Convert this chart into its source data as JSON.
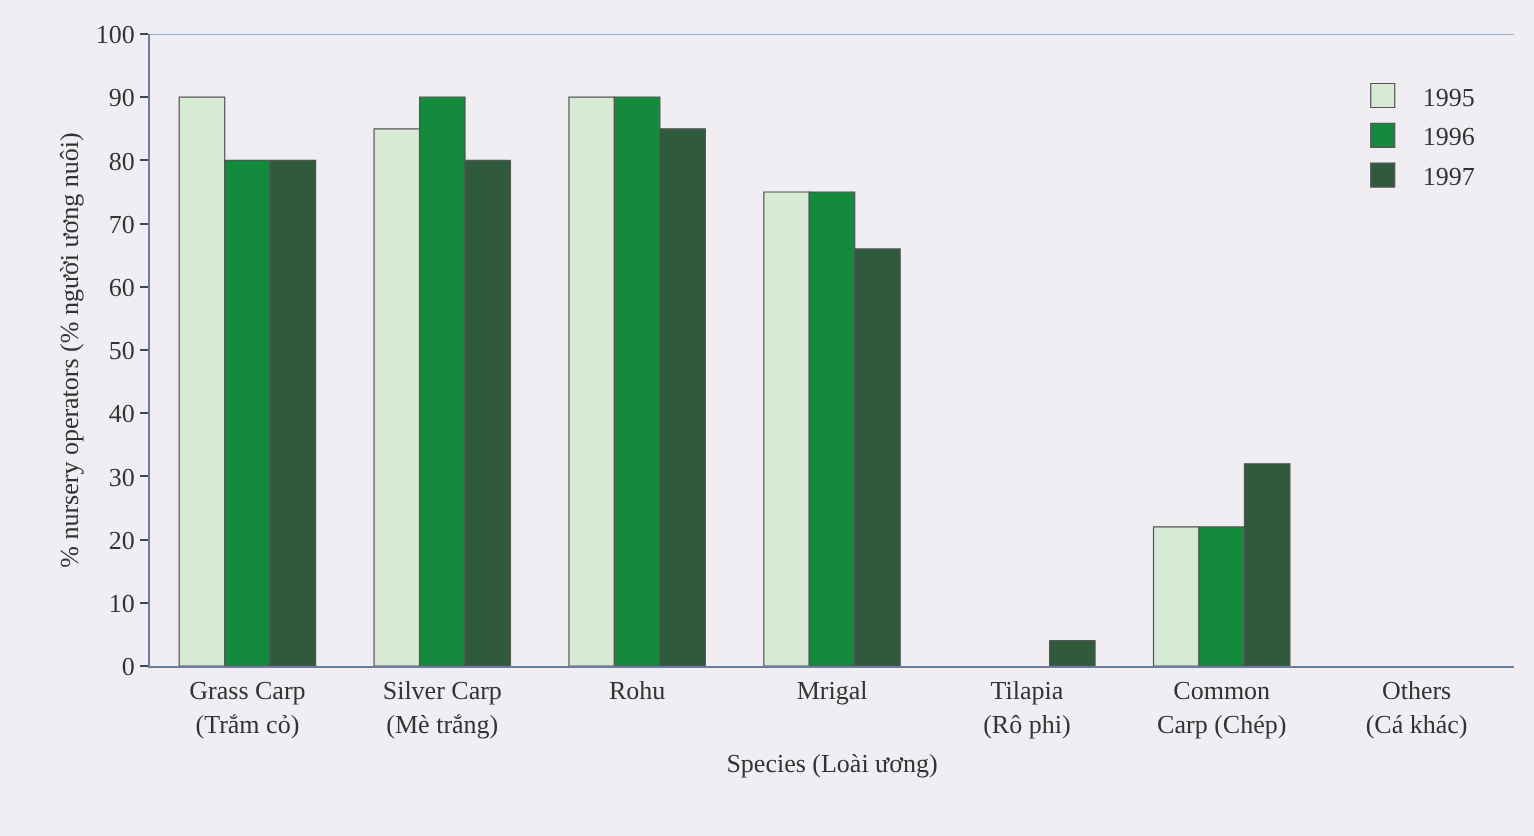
{
  "chart_data": {
    "type": "bar",
    "xlabel": "Species (Loài ương)",
    "ylabel": "% nursery operators (% người ương nuôi)",
    "categories": [
      "Grass Carp (Trắm cỏ)",
      "Silver Carp (Mè trắng)",
      "Rohu",
      "Mrigal",
      "Tilapia (Rô phi)",
      "Common Carp (Chép)",
      "Others (Cá khác)"
    ],
    "series": [
      {
        "name": "1995",
        "color": "#d6ead4",
        "values": [
          90,
          85,
          90,
          75,
          0,
          22,
          0
        ]
      },
      {
        "name": "1996",
        "color": "#138a3c",
        "values": [
          80,
          90,
          90,
          75,
          0,
          22,
          0
        ]
      },
      {
        "name": "1997",
        "color": "#2f5a3c",
        "values": [
          80,
          80,
          85,
          66,
          4,
          32,
          0
        ]
      }
    ],
    "ylim": [
      0,
      100
    ],
    "yticks": [
      0,
      10,
      20,
      30,
      40,
      50,
      60,
      70,
      80,
      90,
      100
    ],
    "grid": false,
    "legend": "top right"
  }
}
